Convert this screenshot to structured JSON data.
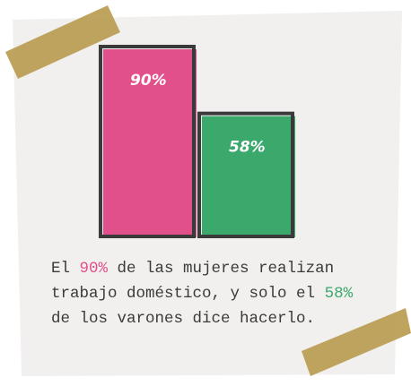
{
  "chart_data": {
    "type": "bar",
    "categories": [
      null,
      null
    ],
    "values": [
      90,
      58
    ],
    "value_labels": [
      "90%",
      "58%"
    ],
    "colors": [
      "#e2508b",
      "#3ba86c"
    ],
    "ylim": [
      0,
      90
    ]
  },
  "caption": [
    [
      {
        "text": "El "
      },
      {
        "text": "90%",
        "color": "#e2508b"
      },
      {
        "text": " de las mujeres realizan"
      }
    ],
    [
      {
        "text": "trabajo doméstico, y solo el "
      },
      {
        "text": "58%",
        "color": "#3ba86c"
      }
    ],
    [
      {
        "text": "de los varones dice hacerlo."
      }
    ]
  ]
}
